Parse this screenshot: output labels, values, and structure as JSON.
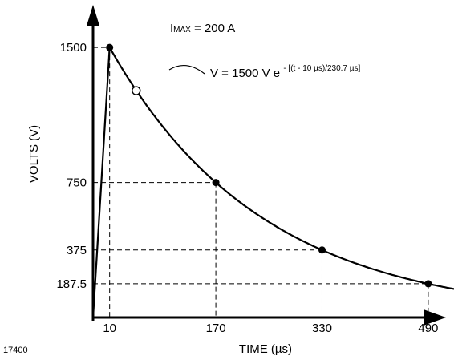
{
  "chart_data": {
    "type": "line",
    "xlabel": "TIME (µs)",
    "ylabel": "VOLTS (V)",
    "xlim": [
      -15,
      530
    ],
    "ylim": [
      0,
      1710
    ],
    "grid": false,
    "x_ticks": [
      "10",
      "170",
      "330",
      "490"
    ],
    "x_tick_values": [
      10,
      170,
      330,
      490
    ],
    "y_ticks": [
      "1500",
      "750",
      "375",
      "187.5"
    ],
    "y_tick_values": [
      1500,
      750,
      375,
      187.5
    ],
    "series": [
      {
        "rise": {
          "x": [
            -15,
            10
          ],
          "y": [
            0,
            1500
          ]
        },
        "decay": {
          "formula_v0": 1500,
          "formula_t0": 10,
          "formula_tau": 230.7,
          "x_end": 530
        },
        "markers": [
          {
            "x": 10,
            "y": 1500
          },
          {
            "x": 170,
            "y": 750
          },
          {
            "x": 330,
            "y": 375
          },
          {
            "x": 490,
            "y": 187.5
          }
        ],
        "open_marker": {
          "x": 50,
          "y": 1260
        }
      }
    ],
    "annotations": {
      "imax": {
        "prefix": "I",
        "sub": "MAX",
        "rest": " = 200 A"
      },
      "formula": {
        "main": "V = 1500 V e",
        "exponent": "- [(t -  10 µs)/230.7 µs]"
      }
    },
    "figure_number": "17400",
    "colors": {
      "ink": "#000000",
      "background": "#ffffff"
    }
  }
}
